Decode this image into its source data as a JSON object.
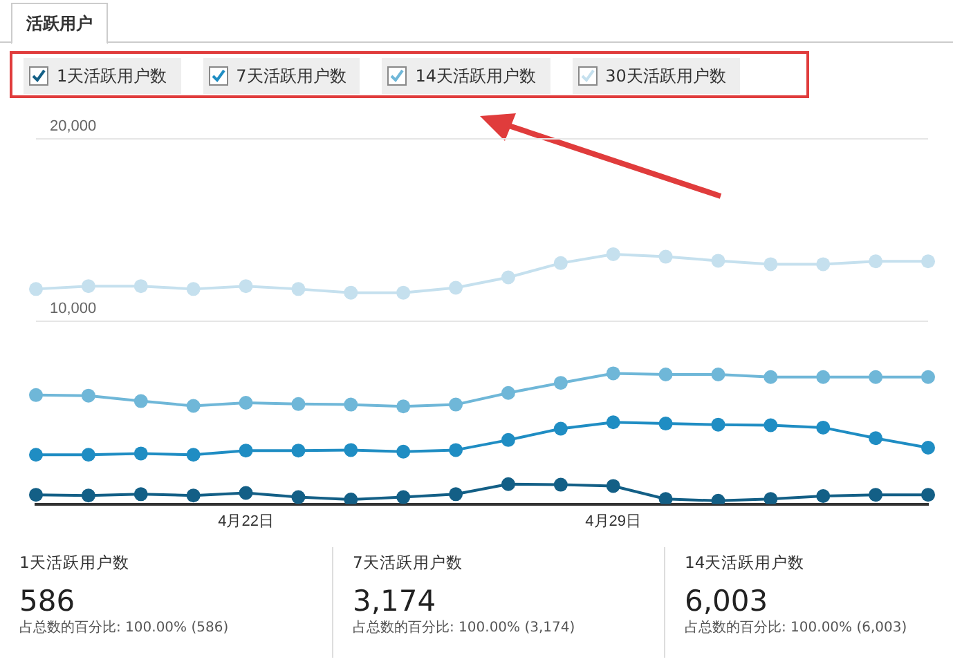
{
  "chart_data": {
    "type": "line",
    "title": "活跃用户",
    "categories": [
      null,
      null,
      null,
      null,
      "4月22日",
      null,
      null,
      null,
      null,
      null,
      null,
      "4月29日",
      null,
      null,
      null,
      null,
      null,
      null
    ],
    "series": [
      {
        "name": "1天活跃用户数",
        "color": "#135f86",
        "values": [
          510,
          470,
          540,
          470,
          610,
          380,
          250,
          380,
          540,
          1090,
          1060,
          990,
          280,
          180,
          280,
          440,
          510,
          510
        ]
      },
      {
        "name": "7天活跃用户数",
        "color": "#1f8dc3",
        "values": [
          2700,
          2700,
          2770,
          2700,
          2930,
          2930,
          2960,
          2870,
          2960,
          3510,
          4130,
          4480,
          4410,
          4350,
          4320,
          4190,
          3610,
          3090
        ]
      },
      {
        "name": "14天活跃用户数",
        "color": "#6fb7d8",
        "values": [
          5970,
          5940,
          5640,
          5380,
          5550,
          5480,
          5450,
          5350,
          5450,
          6090,
          6640,
          7160,
          7100,
          7100,
          6960,
          6960,
          6960,
          6960
        ]
      },
      {
        "name": "30天活跃用户数",
        "color": "#c5e0ee",
        "values": [
          11780,
          11940,
          11940,
          11780,
          11940,
          11780,
          11580,
          11580,
          11850,
          12420,
          13200,
          13690,
          13550,
          13330,
          13140,
          13140,
          13300,
          13300
        ]
      }
    ],
    "ylim": [
      0,
      20000
    ],
    "yticks": [
      {
        "value": 0,
        "label": null
      },
      {
        "value": 10000,
        "label": "10,000"
      },
      {
        "value": 20000,
        "label": "20,000"
      }
    ],
    "grid": "y",
    "legend": "top",
    "marker": "circle",
    "line_style": "solid",
    "annotations": [
      "1天活跃用户数",
      "586",
      "占总数的百分比: 100.00% (586)",
      "7天活跃用户数",
      "3,174",
      "占总数的百分比: 100.00% (3,174)",
      "14天活跃用户数",
      "6,003",
      "占总数的百分比: 100.00% (6,003)"
    ]
  }
}
